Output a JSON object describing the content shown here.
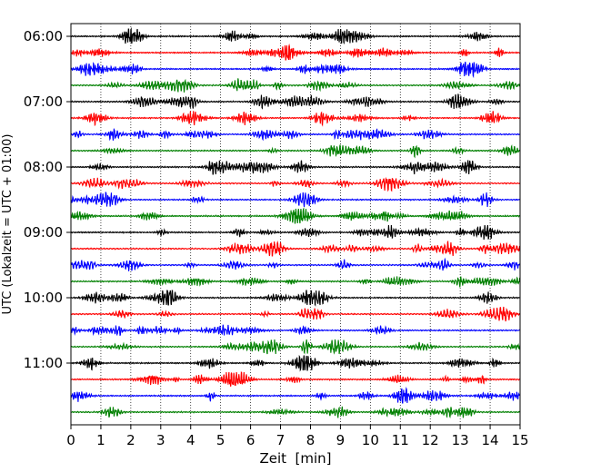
{
  "chart_data": {
    "type": "line",
    "title": "",
    "xlabel": "Zeit  [min]",
    "ylabel": "UTC (Lokalzeit = UTC + 01:00)",
    "xlim": [
      0,
      15
    ],
    "x_ticks": [
      0,
      1,
      2,
      3,
      4,
      5,
      6,
      7,
      8,
      9,
      10,
      11,
      12,
      13,
      14,
      15
    ],
    "y_tick_labels": [
      "06:00",
      "07:00",
      "08:00",
      "09:00",
      "10:00",
      "11:00"
    ],
    "trace_start_times": [
      "06:00",
      "06:15",
      "06:30",
      "06:45",
      "07:00",
      "07:15",
      "07:30",
      "07:45",
      "08:00",
      "08:15",
      "08:30",
      "08:45",
      "09:00",
      "09:15",
      "09:30",
      "09:45",
      "10:00",
      "10:15",
      "10:30",
      "10:45",
      "11:00",
      "11:15",
      "11:30",
      "11:45"
    ],
    "trace_colors": [
      "#000000",
      "#ff0000",
      "#0000ff",
      "#008000"
    ],
    "grid": "vertical dotted at each minute",
    "legend": "none"
  }
}
